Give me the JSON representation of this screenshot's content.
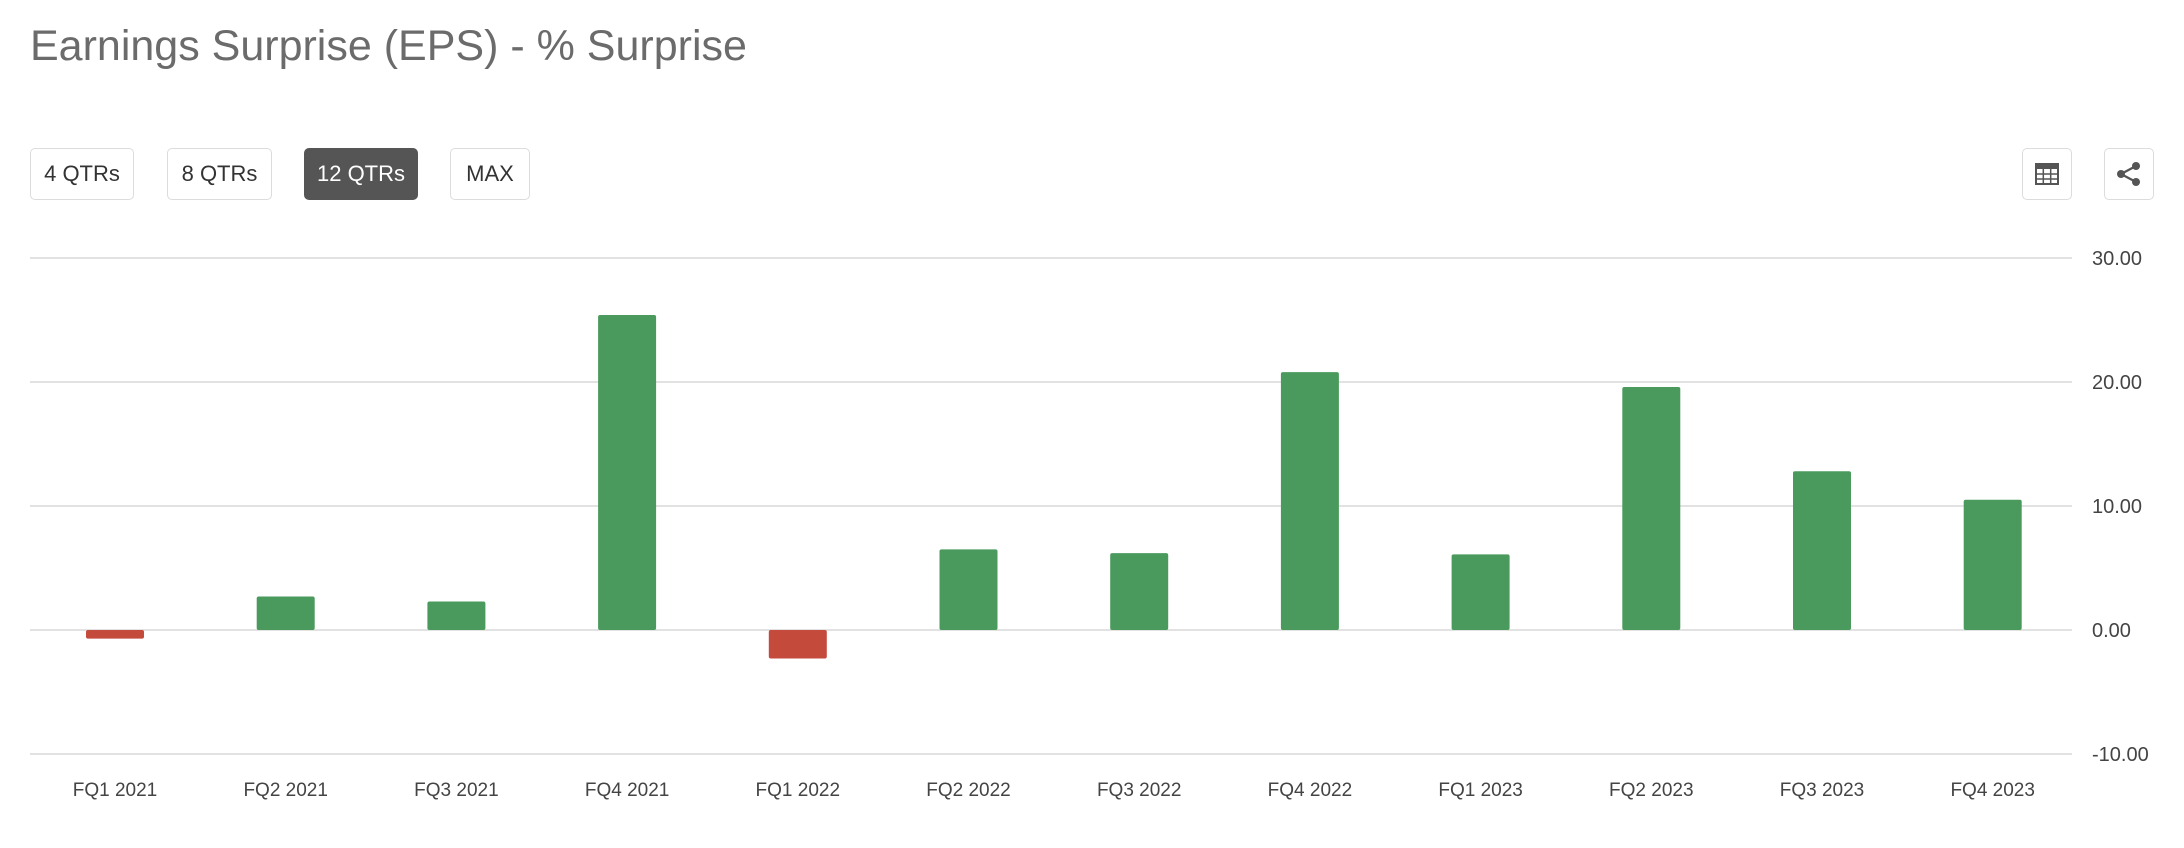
{
  "header": {
    "title": "Earnings Surprise (EPS) - % Surprise"
  },
  "controls": {
    "periods": [
      {
        "label": "4 QTRs",
        "active": false
      },
      {
        "label": "8 QTRs",
        "active": false
      },
      {
        "label": "12 QTRs",
        "active": true
      },
      {
        "label": "MAX",
        "active": false
      }
    ],
    "table_icon": "table-icon",
    "share_icon": "share-icon"
  },
  "colors": {
    "positive": "#4a9a5d",
    "negative": "#c44a3c",
    "grid": "#d9d9d9",
    "axis_text": "#444444",
    "active_button": "#555555"
  },
  "chart_data": {
    "type": "bar",
    "title": "",
    "xlabel": "",
    "ylabel": "",
    "categories": [
      "FQ1 2021",
      "FQ2 2021",
      "FQ3 2021",
      "FQ4 2021",
      "FQ1 2022",
      "FQ2 2022",
      "FQ3 2022",
      "FQ4 2022",
      "FQ1 2023",
      "FQ2 2023",
      "FQ3 2023",
      "FQ4 2023"
    ],
    "values": [
      -0.7,
      2.7,
      2.3,
      25.4,
      -2.3,
      6.5,
      6.2,
      20.8,
      6.1,
      19.6,
      12.8,
      10.5
    ],
    "ylim": [
      -10,
      30
    ],
    "yticks": [
      30,
      20,
      10,
      0,
      -10
    ],
    "ytick_labels": [
      "30.00",
      "20.00",
      "10.00",
      "0.00",
      "-10.00"
    ],
    "y_axis_position": "right",
    "grid": true,
    "legend": "none"
  }
}
